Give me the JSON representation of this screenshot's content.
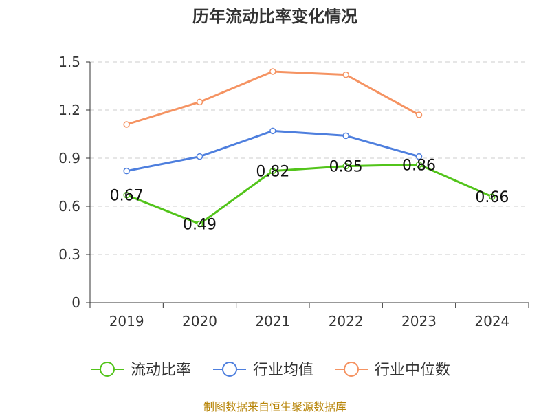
{
  "chart_data": {
    "type": "line",
    "title": "历年流动比率变化情况",
    "categories": [
      "2019",
      "2020",
      "2021",
      "2022",
      "2023",
      "2024"
    ],
    "y_ticks": [
      "0",
      "0.3",
      "0.6",
      "0.9",
      "1.2",
      "1.5"
    ],
    "ylim": [
      0,
      1.5
    ],
    "grid": true,
    "legend_position": "bottom",
    "series": [
      {
        "name": "流动比率",
        "color": "#52c41a",
        "values": [
          0.67,
          0.49,
          0.82,
          0.85,
          0.86,
          0.66
        ],
        "labels": [
          "0.67",
          "0.49",
          "0.82",
          "0.85",
          "0.86",
          "0.66"
        ]
      },
      {
        "name": "行业均值",
        "color": "#4e7fde",
        "values": [
          0.82,
          0.91,
          1.07,
          1.04,
          0.91,
          null
        ]
      },
      {
        "name": "行业中位数",
        "color": "#f59362",
        "values": [
          1.11,
          1.25,
          1.44,
          1.42,
          1.17,
          null
        ]
      }
    ]
  },
  "footer": {
    "source": "制图数据来自恒生聚源数据库"
  }
}
